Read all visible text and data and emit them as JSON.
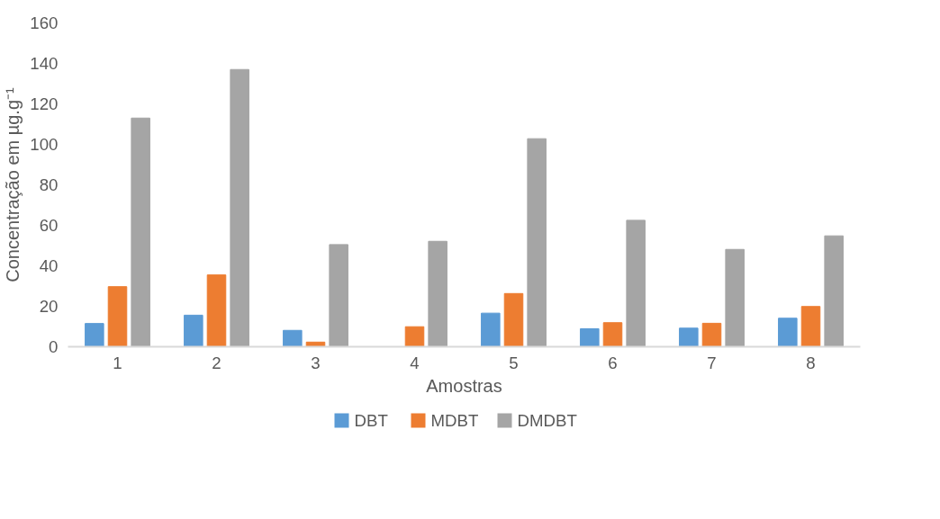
{
  "chart_data": {
    "type": "bar",
    "xlabel": "Amostras",
    "ylabel": "Concentração em µg.g⁻¹",
    "categories": [
      "1",
      "2",
      "3",
      "4",
      "5",
      "6",
      "7",
      "8"
    ],
    "series": [
      {
        "name": "DBT",
        "color": "#5b9bd5",
        "values": [
          11.5,
          15.6,
          8.1,
          0,
          16.6,
          8.9,
          9.2,
          14.1
        ]
      },
      {
        "name": "MDBT",
        "color": "#ed7d31",
        "values": [
          29.7,
          35.5,
          2.3,
          9.9,
          26.3,
          11.9,
          11.6,
          19.9
        ]
      },
      {
        "name": "DMDBT",
        "color": "#a5a5a5",
        "values": [
          113.0,
          137.0,
          50.5,
          52.1,
          102.8,
          62.5,
          48.1,
          54.8
        ]
      }
    ],
    "ylim": [
      0,
      160
    ],
    "yticks": [
      0,
      20,
      40,
      60,
      80,
      100,
      120,
      140,
      160
    ],
    "grid": false,
    "legend": "bottom"
  }
}
